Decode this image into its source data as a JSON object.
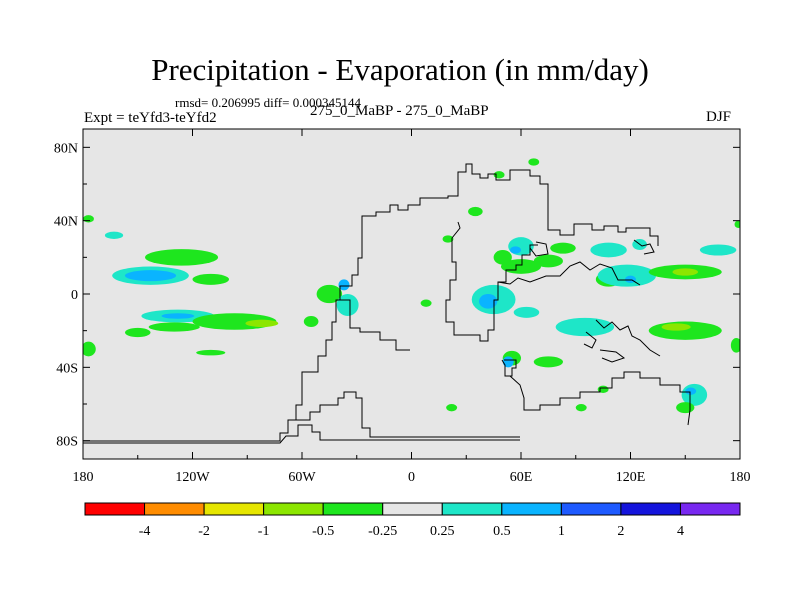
{
  "title": "Precipitation - Evaporation (in mm/day)",
  "stats": "rmsd= 0.206995 diff= 0.000345144",
  "expt": "Expt = teYfd3-teYfd2",
  "center_label": "275_0_MaBP - 275_0_MaBP",
  "season": "DJF",
  "colors": {
    "background": "#e6e6e6",
    "landline": "#000000"
  },
  "chart_data": {
    "type": "heatmap",
    "title": "Precipitation - Evaporation (in mm/day)",
    "xlabel": "",
    "ylabel": "",
    "xlim": [
      -180,
      180
    ],
    "ylim": [
      -90,
      90
    ],
    "x_ticks": [
      {
        "value": -180,
        "label": "180"
      },
      {
        "value": -120,
        "label": "120W"
      },
      {
        "value": -60,
        "label": "60W"
      },
      {
        "value": 0,
        "label": "0"
      },
      {
        "value": 60,
        "label": "60E"
      },
      {
        "value": 120,
        "label": "120E"
      },
      {
        "value": 180,
        "label": "180"
      }
    ],
    "y_ticks": [
      {
        "value": 80,
        "label": "80N"
      },
      {
        "value": 40,
        "label": "40N"
      },
      {
        "value": 0,
        "label": "0"
      },
      {
        "value": -40,
        "label": "40S"
      },
      {
        "value": -80,
        "label": "80S"
      }
    ],
    "colorbar": {
      "colors": [
        "#ff0000",
        "#ff8c00",
        "#e6e600",
        "#8ce600",
        "#1ee61e",
        "#e6e6e6",
        "#1ee6c8",
        "#0ab4ff",
        "#1e5aff",
        "#1414dc",
        "#7828f0"
      ],
      "boundary_labels": [
        "-4",
        "-2",
        "-1",
        "-0.5",
        "-0.25",
        "0.25",
        "0.5",
        "1",
        "2",
        "4"
      ]
    },
    "features": [
      {
        "lon": -143,
        "lat": 10,
        "rlon": 21,
        "rlat": 5,
        "level": 1
      },
      {
        "lon": -143,
        "lat": 10,
        "rlon": 14,
        "rlat": 3,
        "level": 2
      },
      {
        "lon": -126,
        "lat": 20,
        "rlon": 20,
        "rlat": 4.5,
        "level": -1
      },
      {
        "lon": -163,
        "lat": 32,
        "rlon": 5,
        "rlat": 2,
        "level": 1
      },
      {
        "lon": -177,
        "lat": 41,
        "rlon": 3,
        "rlat": 2,
        "level": -1
      },
      {
        "lon": -110,
        "lat": 8,
        "rlon": 10,
        "rlat": 3,
        "level": -1
      },
      {
        "lon": -128,
        "lat": -12,
        "rlon": 20,
        "rlat": 3.5,
        "level": 1
      },
      {
        "lon": -128,
        "lat": -12,
        "rlon": 9,
        "rlat": 1.5,
        "level": 2
      },
      {
        "lon": -130,
        "lat": -18,
        "rlon": 14,
        "rlat": 2.5,
        "level": -1
      },
      {
        "lon": -97,
        "lat": -15,
        "rlon": 23,
        "rlat": 4.5,
        "level": -1
      },
      {
        "lon": -82,
        "lat": -16,
        "rlon": 9,
        "rlat": 2,
        "level": -2
      },
      {
        "lon": -150,
        "lat": -21,
        "rlon": 7,
        "rlat": 2.5,
        "level": -1
      },
      {
        "lon": -110,
        "lat": -32,
        "rlon": 8,
        "rlat": 1.5,
        "level": -1
      },
      {
        "lon": -177,
        "lat": -30,
        "rlon": 4,
        "rlat": 4,
        "level": -1
      },
      {
        "lon": -45,
        "lat": 0,
        "rlon": 7,
        "rlat": 5,
        "level": -1
      },
      {
        "lon": -35,
        "lat": -6,
        "rlon": 6,
        "rlat": 6,
        "level": 1
      },
      {
        "lon": -37,
        "lat": 5,
        "rlon": 3,
        "rlat": 3,
        "level": 2
      },
      {
        "lon": -55,
        "lat": -15,
        "rlon": 4,
        "rlat": 3,
        "level": -1
      },
      {
        "lon": 20,
        "lat": 30,
        "rlon": 3,
        "rlat": 2,
        "level": -1
      },
      {
        "lon": 8,
        "lat": -5,
        "rlon": 3,
        "rlat": 2,
        "level": -1
      },
      {
        "lon": 35,
        "lat": 45,
        "rlon": 4,
        "rlat": 2.5,
        "level": -1
      },
      {
        "lon": 48,
        "lat": 65,
        "rlon": 3,
        "rlat": 2,
        "level": -1
      },
      {
        "lon": 50,
        "lat": 20,
        "rlon": 5,
        "rlat": 4,
        "level": -1
      },
      {
        "lon": 60,
        "lat": 15,
        "rlon": 11,
        "rlat": 4,
        "level": -1
      },
      {
        "lon": 75,
        "lat": 18,
        "rlon": 8,
        "rlat": 3.5,
        "level": -1
      },
      {
        "lon": 83,
        "lat": 25,
        "rlon": 7,
        "rlat": 3,
        "level": -1
      },
      {
        "lon": 45,
        "lat": -3,
        "rlon": 12,
        "rlat": 8,
        "level": 1
      },
      {
        "lon": 42,
        "lat": -4,
        "rlon": 5,
        "rlat": 4,
        "level": 2
      },
      {
        "lon": 55,
        "lat": -35,
        "rlon": 5,
        "rlat": 4,
        "level": -1
      },
      {
        "lon": 53,
        "lat": -37,
        "rlon": 3,
        "rlat": 3,
        "level": 2
      },
      {
        "lon": 60,
        "lat": 26,
        "rlon": 7,
        "rlat": 5,
        "level": 1
      },
      {
        "lon": 57,
        "lat": 24,
        "rlon": 3,
        "rlat": 2,
        "level": 2
      },
      {
        "lon": 63,
        "lat": -10,
        "rlon": 7,
        "rlat": 3,
        "level": 1
      },
      {
        "lon": 95,
        "lat": -18,
        "rlon": 16,
        "rlat": 5,
        "level": 1
      },
      {
        "lon": 108,
        "lat": 8,
        "rlon": 7,
        "rlat": 4,
        "level": -1
      },
      {
        "lon": 118,
        "lat": 10,
        "rlon": 16,
        "rlat": 6,
        "level": 1
      },
      {
        "lon": 120,
        "lat": 8,
        "rlon": 3,
        "rlat": 2,
        "level": 2
      },
      {
        "lon": 150,
        "lat": 12,
        "rlon": 20,
        "rlat": 4,
        "level": -1
      },
      {
        "lon": 150,
        "lat": 12,
        "rlon": 7,
        "rlat": 2,
        "level": -2
      },
      {
        "lon": 168,
        "lat": 24,
        "rlon": 10,
        "rlat": 3,
        "level": 1
      },
      {
        "lon": 108,
        "lat": 24,
        "rlon": 10,
        "rlat": 4,
        "level": 1
      },
      {
        "lon": 125,
        "lat": 27,
        "rlon": 4,
        "rlat": 3,
        "level": 1
      },
      {
        "lon": 150,
        "lat": -20,
        "rlon": 20,
        "rlat": 5,
        "level": -1
      },
      {
        "lon": 145,
        "lat": -18,
        "rlon": 8,
        "rlat": 2,
        "level": -2
      },
      {
        "lon": 178,
        "lat": -28,
        "rlon": 3,
        "rlat": 4,
        "level": -1
      },
      {
        "lon": 179,
        "lat": 38,
        "rlon": 2,
        "rlat": 2,
        "level": -1
      },
      {
        "lon": 75,
        "lat": -37,
        "rlon": 8,
        "rlat": 3,
        "level": -1
      },
      {
        "lon": 155,
        "lat": -55,
        "rlon": 7,
        "rlat": 6,
        "level": 1
      },
      {
        "lon": 153,
        "lat": -53,
        "rlon": 3,
        "rlat": 2,
        "level": 2
      },
      {
        "lon": 150,
        "lat": -62,
        "rlon": 5,
        "rlat": 3,
        "level": -1
      },
      {
        "lon": 22,
        "lat": -62,
        "rlon": 3,
        "rlat": 2,
        "level": -1
      },
      {
        "lon": 93,
        "lat": -62,
        "rlon": 3,
        "rlat": 2,
        "level": -1
      },
      {
        "lon": 105,
        "lat": -52,
        "rlon": 3,
        "rlat": 2,
        "level": -1
      },
      {
        "lon": 67,
        "lat": 72,
        "rlon": 3,
        "rlat": 2,
        "level": -1
      }
    ]
  }
}
